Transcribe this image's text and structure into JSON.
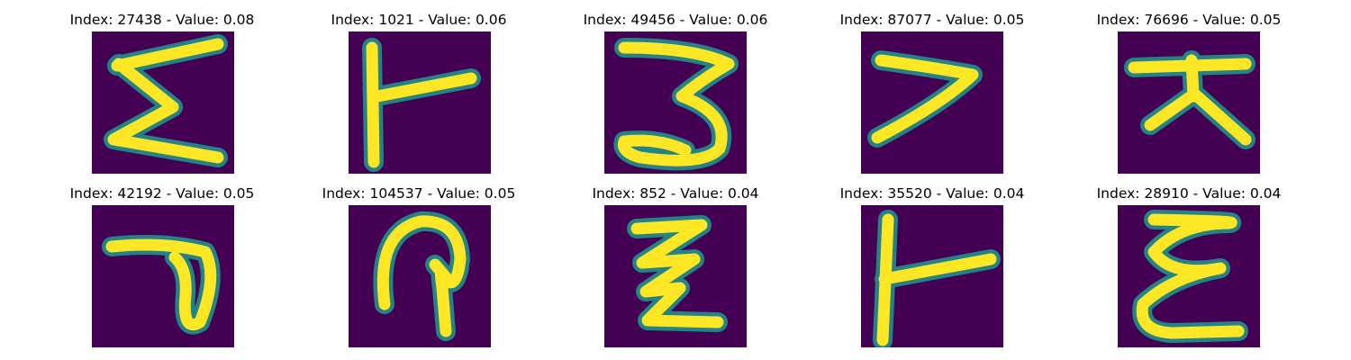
{
  "panels": [
    {
      "title": "Index: 27438 - Value: 0.08",
      "glyph": "sigma-glyph"
    },
    {
      "title": "Index: 1021 - Value: 0.06",
      "glyph": "t-right-glyph"
    },
    {
      "title": "Index: 49456 - Value: 0.06",
      "glyph": "three-glyph"
    },
    {
      "title": "Index: 87077 - Value: 0.05",
      "glyph": "seven-glyph"
    },
    {
      "title": "Index: 76696 - Value: 0.05",
      "glyph": "tee-legs-glyph"
    },
    {
      "title": "Index: 42192 - Value: 0.05",
      "glyph": "p-loop-glyph"
    },
    {
      "title": "Index: 104537 - Value: 0.05",
      "glyph": "arch-glyph"
    },
    {
      "title": "Index: 852 - Value: 0.04",
      "glyph": "zigzag-glyph"
    },
    {
      "title": "Index: 35520 - Value: 0.04",
      "glyph": "t-right-thin-glyph"
    },
    {
      "title": "Index: 28910 - Value: 0.04",
      "glyph": "epsilon-glyph"
    }
  ],
  "colors": {
    "background": "#440154",
    "edge": "#21918c",
    "stroke": "#fde725"
  }
}
